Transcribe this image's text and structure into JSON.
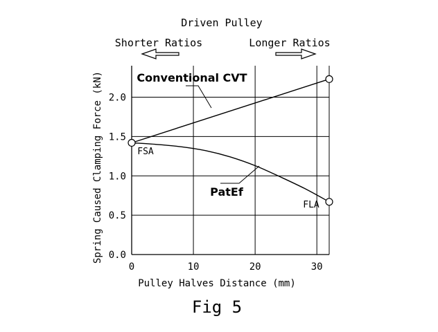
{
  "chart_data": {
    "type": "line",
    "title": "Driven Pulley",
    "caption": "Fig 5",
    "xlabel": "Pulley Halves Distance (mm)",
    "ylabel": "Spring Caused Clamping Force (kN)",
    "xlim": [
      0,
      32
    ],
    "ylim": [
      0,
      2.4
    ],
    "xticks": [
      0,
      10,
      20,
      30
    ],
    "xtick_labels": [
      "0",
      "10",
      "20",
      "30"
    ],
    "yticks": [
      0,
      0.5,
      1.0,
      1.5,
      2.0
    ],
    "ytick_labels": [
      "0.0",
      "0.5",
      "1.0",
      "1.5",
      "2.0"
    ],
    "grid": true,
    "direction_labels": {
      "left": "Shorter Ratios",
      "right": "Longer Ratios"
    },
    "series": [
      {
        "name": "Conventional CVT",
        "x": [
          0,
          32
        ],
        "y": [
          1.42,
          2.23
        ]
      },
      {
        "name": "PatEf",
        "x": [
          0,
          4,
          8,
          12,
          16,
          20,
          24,
          28,
          32
        ],
        "y": [
          1.42,
          1.4,
          1.37,
          1.32,
          1.24,
          1.13,
          0.99,
          0.84,
          0.67
        ]
      }
    ],
    "annotations": [
      {
        "text": "FSA",
        "x": 0,
        "y": 1.42
      },
      {
        "text": "FLA",
        "x": 32,
        "y": 0.67
      }
    ]
  }
}
